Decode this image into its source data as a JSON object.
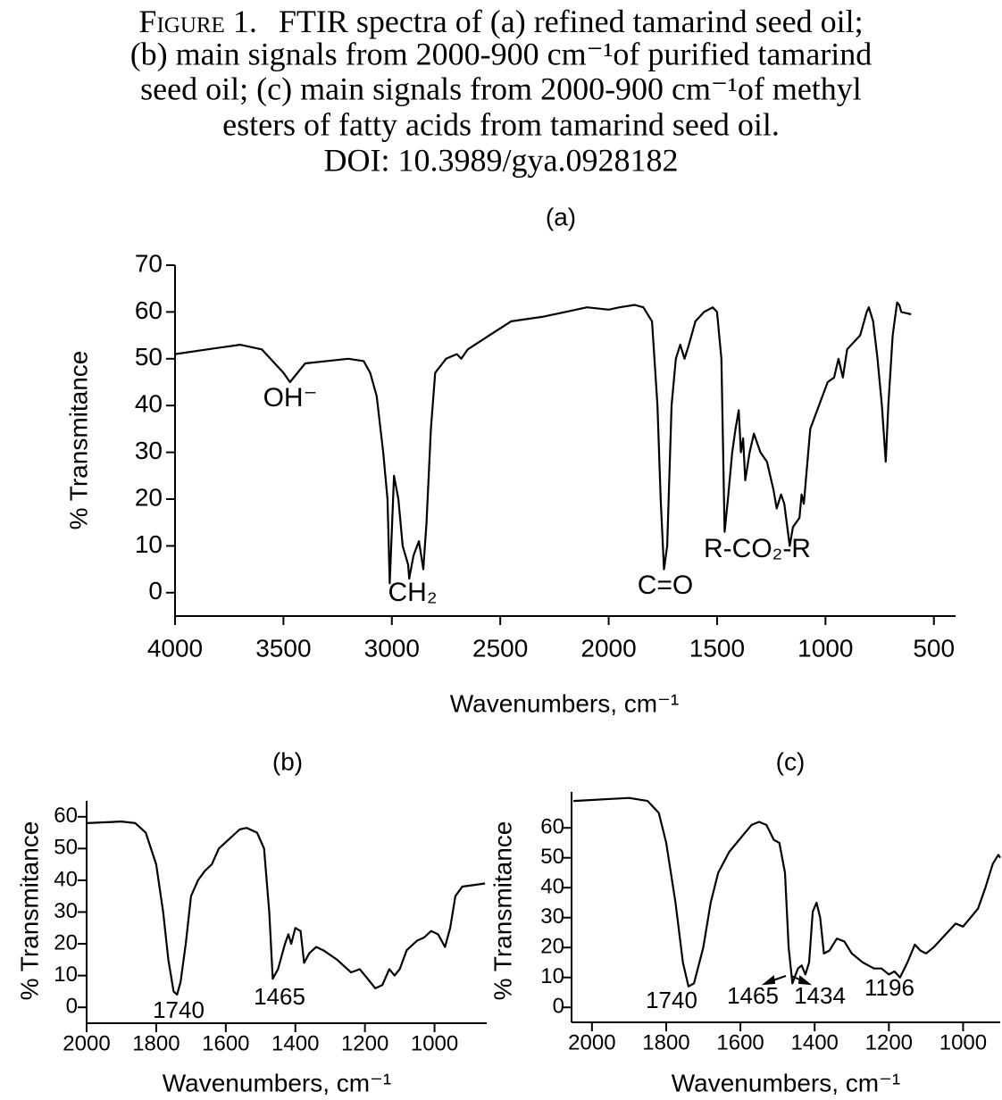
{
  "caption": {
    "label": "Figure 1.",
    "lines": [
      "FTIR spectra of (a) refined tamarind seed oil;",
      "(b) main signals from 2000-900 cm⁻¹of purified tamarind",
      "seed oil; (c) main signals from 2000-900 cm⁻¹of methyl",
      "esters of fatty acids from tamarind seed oil.",
      "DOI: 10.3989/gya.0928182"
    ]
  },
  "chart_data": [
    {
      "type": "line",
      "title": "(a)",
      "x_label": "Wavenumbers, cm⁻¹",
      "y_label": "% Transmitance",
      "color": "#000000",
      "xlim": [
        4000,
        400
      ],
      "ylim": [
        -5,
        70
      ],
      "xticks": [
        4000,
        3500,
        3000,
        2500,
        2000,
        1500,
        1000,
        500
      ],
      "yticks": [
        0,
        10,
        20,
        30,
        40,
        50,
        60,
        70
      ],
      "annotations": [
        "OH⁻",
        "CH₂",
        "C=O",
        "R-CO₂-R"
      ],
      "x": [
        4000,
        3850,
        3700,
        3600,
        3500,
        3470,
        3400,
        3200,
        3130,
        3100,
        3070,
        3040,
        3020,
        3010,
        2990,
        2970,
        2950,
        2925,
        2920,
        2900,
        2875,
        2865,
        2855,
        2840,
        2820,
        2800,
        2750,
        2700,
        2680,
        2650,
        2550,
        2450,
        2300,
        2200,
        2100,
        2000,
        1950,
        1880,
        1840,
        1800,
        1775,
        1760,
        1745,
        1730,
        1710,
        1690,
        1670,
        1650,
        1630,
        1600,
        1560,
        1520,
        1500,
        1480,
        1465,
        1450,
        1430,
        1415,
        1400,
        1390,
        1380,
        1370,
        1350,
        1330,
        1300,
        1270,
        1240,
        1225,
        1205,
        1190,
        1165,
        1150,
        1120,
        1110,
        1100,
        1070,
        1030,
        990,
        960,
        940,
        920,
        900,
        860,
        840,
        810,
        800,
        780,
        760,
        740,
        722,
        710,
        690,
        670,
        660,
        650,
        605
      ],
      "values": [
        51,
        52,
        53,
        52,
        47,
        45,
        49,
        50,
        49.5,
        47,
        42,
        30,
        20,
        2,
        25,
        20,
        10,
        6,
        3,
        8,
        11,
        8,
        5,
        15,
        35,
        47,
        50,
        51,
        50,
        52,
        55,
        58,
        59,
        60,
        61,
        60.5,
        61,
        61.5,
        61,
        58,
        40,
        20,
        5,
        10,
        40,
        50,
        53,
        50,
        53,
        58,
        60,
        61,
        60,
        50,
        13,
        20,
        30,
        35,
        39,
        30,
        33,
        24,
        30,
        34,
        30,
        28,
        22,
        18,
        21,
        19,
        10,
        14,
        16,
        21,
        19,
        35,
        40,
        45,
        46,
        50,
        46,
        52,
        54,
        55,
        60,
        61,
        58,
        50,
        40,
        28,
        40,
        55,
        62,
        61.5,
        60,
        59.5
      ]
    },
    {
      "type": "line",
      "title": "(b)",
      "x_label": "Wavenumbers, cm⁻¹",
      "y_label": "% Transmitance",
      "color": "#000000",
      "xlim": [
        2000,
        850
      ],
      "ylim": [
        -5,
        65
      ],
      "xticks": [
        2000,
        1800,
        1600,
        1400,
        1200,
        1000
      ],
      "yticks": [
        0,
        10,
        20,
        30,
        40,
        50,
        60
      ],
      "annotations": [
        "1740",
        "1465"
      ],
      "x": [
        2000,
        1900,
        1860,
        1830,
        1800,
        1780,
        1765,
        1750,
        1740,
        1730,
        1715,
        1700,
        1680,
        1660,
        1640,
        1620,
        1590,
        1560,
        1540,
        1510,
        1490,
        1475,
        1465,
        1450,
        1430,
        1420,
        1412,
        1400,
        1385,
        1375,
        1360,
        1340,
        1320,
        1280,
        1240,
        1215,
        1200,
        1170,
        1150,
        1130,
        1115,
        1100,
        1080,
        1050,
        1030,
        1010,
        990,
        970,
        955,
        940,
        920,
        855
      ],
      "values": [
        58,
        58.5,
        58,
        55,
        45,
        30,
        15,
        5,
        4,
        8,
        20,
        35,
        40,
        43,
        45,
        50,
        53,
        56,
        56.5,
        55,
        50,
        30,
        9,
        12,
        20,
        23,
        20,
        25,
        24,
        14,
        17,
        19,
        18,
        15,
        11,
        12,
        10,
        6,
        7,
        12,
        10,
        12,
        18,
        21,
        22,
        24,
        23,
        19,
        25,
        35,
        38,
        39
      ]
    },
    {
      "type": "line",
      "title": "(c)",
      "x_label": "Wavenumbers, cm⁻¹",
      "y_label": "% Transmitance",
      "color": "#000000",
      "xlim": [
        2055,
        900
      ],
      "ylim": [
        -5,
        72
      ],
      "xticks": [
        2000,
        1800,
        1600,
        1400,
        1200,
        1000
      ],
      "yticks": [
        0,
        10,
        20,
        30,
        40,
        50,
        60
      ],
      "annotations": [
        "1740",
        "1465",
        "1434",
        "1196"
      ],
      "x": [
        2050,
        1900,
        1850,
        1820,
        1800,
        1775,
        1755,
        1740,
        1725,
        1700,
        1680,
        1660,
        1630,
        1610,
        1590,
        1570,
        1550,
        1530,
        1510,
        1495,
        1480,
        1470,
        1460,
        1445,
        1435,
        1425,
        1415,
        1405,
        1395,
        1385,
        1375,
        1360,
        1340,
        1320,
        1300,
        1270,
        1240,
        1220,
        1200,
        1185,
        1170,
        1150,
        1130,
        1115,
        1100,
        1080,
        1050,
        1020,
        1000,
        980,
        960,
        940,
        920,
        905,
        900
      ],
      "values": [
        69,
        70,
        69,
        65,
        55,
        35,
        15,
        7,
        8,
        20,
        35,
        45,
        52,
        55,
        58,
        61,
        62,
        61,
        56,
        55,
        45,
        20,
        8,
        13,
        14,
        11,
        15,
        32,
        35,
        30,
        18,
        19,
        23,
        22,
        18,
        15,
        13,
        13,
        11,
        12,
        10,
        15,
        21,
        19,
        18,
        20,
        24,
        28,
        27,
        30,
        33,
        40,
        48,
        51,
        50
      ]
    }
  ]
}
